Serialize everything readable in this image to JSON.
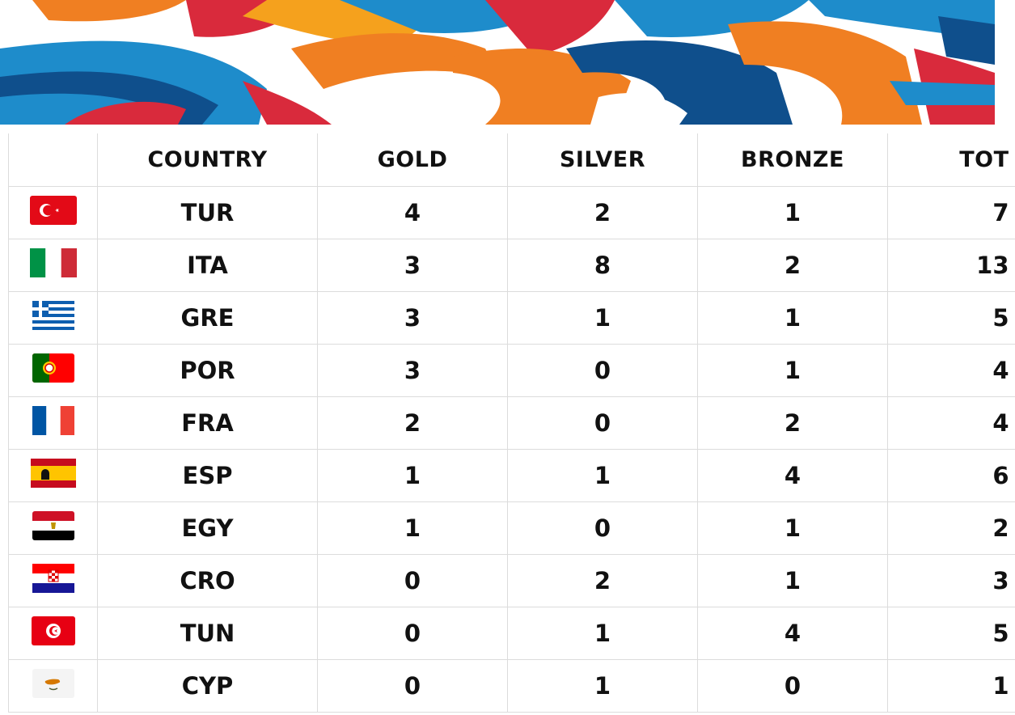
{
  "banner": {
    "colors": [
      "#1e8ccb",
      "#f07f22",
      "#d92a3c",
      "#f5a11d",
      "#0f4f8c",
      "#ffffff"
    ]
  },
  "table": {
    "columns": [
      "",
      "COUNTRY",
      "GOLD",
      "SILVER",
      "BRONZE",
      "TOT"
    ],
    "rows": [
      {
        "flag": "flag-turkey-icon",
        "country": "TUR",
        "gold": "4",
        "silver": "2",
        "bronze": "1",
        "tot": "7"
      },
      {
        "flag": "flag-italy-icon",
        "country": "ITA",
        "gold": "3",
        "silver": "8",
        "bronze": "2",
        "tot": "13"
      },
      {
        "flag": "flag-greece-icon",
        "country": "GRE",
        "gold": "3",
        "silver": "1",
        "bronze": "1",
        "tot": "5"
      },
      {
        "flag": "flag-portugal-icon",
        "country": "POR",
        "gold": "3",
        "silver": "0",
        "bronze": "1",
        "tot": "4"
      },
      {
        "flag": "flag-france-icon",
        "country": "FRA",
        "gold": "2",
        "silver": "0",
        "bronze": "2",
        "tot": "4"
      },
      {
        "flag": "flag-spain-icon",
        "country": "ESP",
        "gold": "1",
        "silver": "1",
        "bronze": "4",
        "tot": "6"
      },
      {
        "flag": "flag-egypt-icon",
        "country": "EGY",
        "gold": "1",
        "silver": "0",
        "bronze": "1",
        "tot": "2"
      },
      {
        "flag": "flag-croatia-icon",
        "country": "CRO",
        "gold": "0",
        "silver": "2",
        "bronze": "1",
        "tot": "3"
      },
      {
        "flag": "flag-tunisia-icon",
        "country": "TUN",
        "gold": "0",
        "silver": "1",
        "bronze": "4",
        "tot": "5"
      },
      {
        "flag": "flag-cyprus-icon",
        "country": "CYP",
        "gold": "0",
        "silver": "1",
        "bronze": "0",
        "tot": "1"
      }
    ]
  }
}
